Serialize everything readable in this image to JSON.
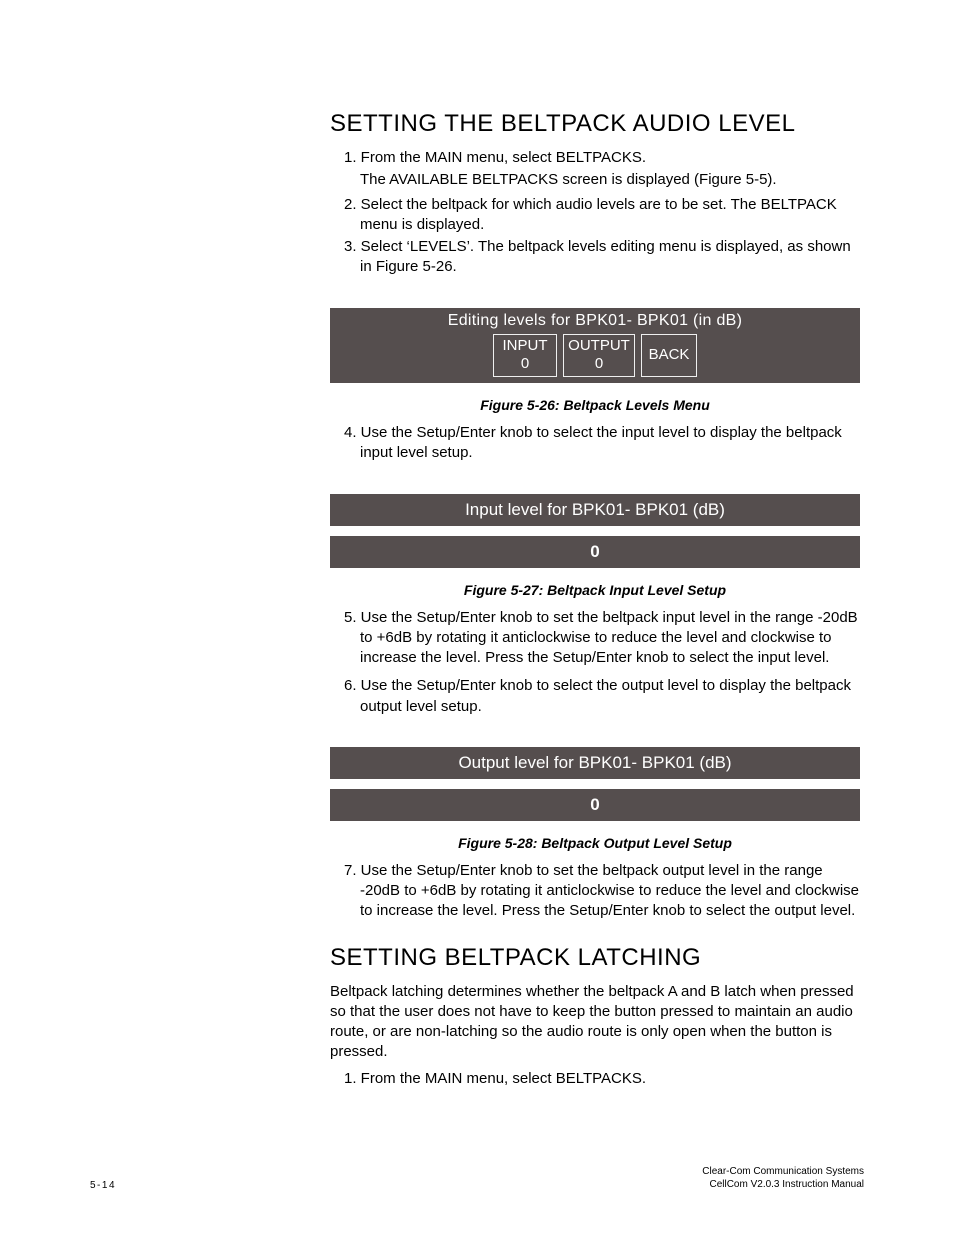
{
  "colors": {
    "page_bg": "#ffffff",
    "text": "#000000",
    "lcd_bg": "#554e4e",
    "lcd_fg": "#ffffff",
    "lcd_border": "#efefef"
  },
  "fonts": {
    "heading_pt": 24,
    "body_pt": 15,
    "caption_pt": 14,
    "footer_pt": 10
  },
  "heading_audio": "SETTING THE BELTPACK AUDIO LEVEL",
  "steps_a": {
    "s1a": "1. From the MAIN menu, select BELTPACKS.",
    "s1b": "The AVAILABLE BELTPACKS screen is displayed (Figure 5-5).",
    "s2": "2. Select the beltpack for which audio levels are to be set. The BELTPACK menu is displayed.",
    "s3": "3. Select ‘LEVELS’. The beltpack levels editing menu is displayed, as shown in Figure 5-26."
  },
  "fig26": {
    "title": "Editing levels for BPK01- BPK01 (in dB)",
    "input_label": "INPUT",
    "input_value": "0",
    "output_label": "OUTPUT",
    "output_value": "0",
    "back_label": "BACK",
    "caption": "Figure 5-26: Beltpack Levels Menu"
  },
  "steps_b": {
    "s4": "4. Use the Setup/Enter knob to select the input level to display the beltpack input level setup."
  },
  "fig27": {
    "bar": "Input level for BPK01- BPK01 (dB)",
    "value": "0",
    "caption": "Figure 5-27: Beltpack Input Level Setup"
  },
  "steps_c": {
    "s5": "5. Use the Setup/Enter knob to set the beltpack input level in the range -20dB to +6dB by rotating it anticlockwise to reduce the level and clockwise to increase the level.  Press the Setup/Enter knob to select the input level.",
    "s6": "6. Use the Setup/Enter knob to select the output level to display the beltpack output level setup."
  },
  "fig28": {
    "bar": "Output level for BPK01- BPK01 (dB)",
    "value": "0",
    "caption": "Figure 5-28: Beltpack Output Level Setup"
  },
  "steps_d": {
    "s7": "7. Use the Setup/Enter knob to set the beltpack output level in the range -20dB to +6dB by rotating it anticlockwise to reduce the level and clockwise to increase the level.  Press the Setup/Enter knob to select the output level."
  },
  "heading_latching": "SETTING BELTPACK LATCHING",
  "latching_para": "Beltpack latching determines whether the beltpack A and B latch when pressed so that the user does not have to keep the button pressed to maintain an audio route, or are non-latching so the audio route is only open when the button is pressed.",
  "steps_e": {
    "s1": "1. From the MAIN menu, select BELTPACKS."
  },
  "footer": {
    "page": "5-14",
    "right1": "Clear-Com Communication Systems",
    "right2": "CellCom V2.0.3 Instruction Manual"
  }
}
